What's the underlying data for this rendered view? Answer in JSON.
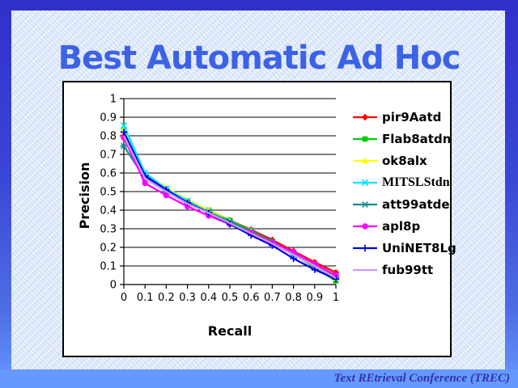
{
  "slide": {
    "title": "Best Automatic Ad Hoc"
  },
  "footer": {
    "text": "Text REtrieval Conference (TREC)"
  },
  "colors": {
    "border_top": "#3030cb",
    "border_bottom": "#6699ff",
    "slide_background": "#dde8fa",
    "title_text": "#3c62e5",
    "footer_band": "#6699ff",
    "footer_text": "#3333a6",
    "plot_background": "#ffffff",
    "axis_and_grid": "#000000"
  },
  "chart_data": {
    "type": "line",
    "title": "",
    "xlabel": "Recall",
    "ylabel": "Precision",
    "xlim": [
      0,
      1
    ],
    "ylim": [
      0,
      1
    ],
    "grid": "horizontal",
    "legend_position": "right",
    "x": [
      0,
      0.1,
      0.2,
      0.3,
      0.4,
      0.5,
      0.6,
      0.7,
      0.8,
      0.9,
      1
    ],
    "x_ticks": [
      "0",
      "0.1",
      "0.2",
      "0.3",
      "0.4",
      "0.5",
      "0.6",
      "0.7",
      "0.8",
      "0.9",
      "1"
    ],
    "y_ticks": [
      "1",
      "0.9",
      "0.8",
      "0.7",
      "0.6",
      "0.5",
      "0.4",
      "0.3",
      "0.2",
      "0.1",
      "0"
    ],
    "series": [
      {
        "name": "pir9Aatd",
        "color": "#ff0000",
        "marker": "diamond",
        "values": [
          0.8,
          0.575,
          0.5,
          0.44,
          0.395,
          0.345,
          0.295,
          0.24,
          0.18,
          0.12,
          0.065
        ]
      },
      {
        "name": "Flab8atdn",
        "color": "#00cc00",
        "marker": "square",
        "values": [
          0.835,
          0.59,
          0.515,
          0.45,
          0.4,
          0.345,
          0.29,
          0.23,
          0.165,
          0.09,
          0.02
        ]
      },
      {
        "name": "ok8alx",
        "color": "#ffff00",
        "marker": "triangle",
        "values": [
          0.835,
          0.6,
          0.52,
          0.455,
          0.4,
          0.34,
          0.285,
          0.225,
          0.16,
          0.1,
          0.035
        ]
      },
      {
        "name": "MITSLStdn",
        "color": "#00e5ff",
        "marker": "x",
        "values": [
          0.855,
          0.6,
          0.515,
          0.45,
          0.39,
          0.33,
          0.28,
          0.22,
          0.16,
          0.105,
          0.04
        ]
      },
      {
        "name": "att99atde",
        "color": "#168f8f",
        "marker": "star",
        "values": [
          0.745,
          0.57,
          0.5,
          0.44,
          0.39,
          0.34,
          0.285,
          0.23,
          0.17,
          0.105,
          0.04
        ]
      },
      {
        "name": "apl8p",
        "color": "#ff00ff",
        "marker": "circle",
        "values": [
          0.79,
          0.545,
          0.48,
          0.42,
          0.37,
          0.325,
          0.28,
          0.225,
          0.175,
          0.11,
          0.05
        ]
      },
      {
        "name": "UniNET8Lg",
        "color": "#0000ee",
        "marker": "plus",
        "values": [
          0.82,
          0.585,
          0.51,
          0.44,
          0.385,
          0.325,
          0.265,
          0.21,
          0.14,
          0.08,
          0.03
        ]
      },
      {
        "name": "fub99tt",
        "color": "#cc99ff",
        "marker": "none",
        "values": [
          0.8,
          0.57,
          0.5,
          0.435,
          0.385,
          0.33,
          0.275,
          0.22,
          0.16,
          0.1,
          0.035
        ]
      }
    ]
  }
}
